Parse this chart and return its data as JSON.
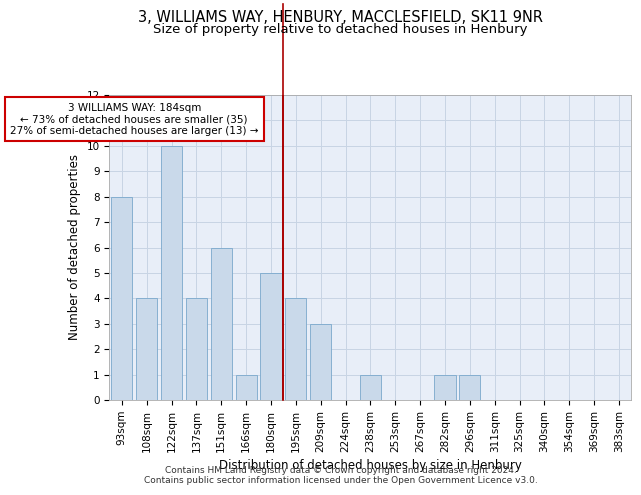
{
  "title1": "3, WILLIAMS WAY, HENBURY, MACCLESFIELD, SK11 9NR",
  "title2": "Size of property relative to detached houses in Henbury",
  "xlabel": "Distribution of detached houses by size in Henbury",
  "ylabel": "Number of detached properties",
  "categories": [
    "93sqm",
    "108sqm",
    "122sqm",
    "137sqm",
    "151sqm",
    "166sqm",
    "180sqm",
    "195sqm",
    "209sqm",
    "224sqm",
    "238sqm",
    "253sqm",
    "267sqm",
    "282sqm",
    "296sqm",
    "311sqm",
    "325sqm",
    "340sqm",
    "354sqm",
    "369sqm",
    "383sqm"
  ],
  "values": [
    8,
    4,
    10,
    4,
    6,
    1,
    5,
    4,
    3,
    0,
    1,
    0,
    0,
    1,
    1,
    0,
    0,
    0,
    0,
    0,
    0
  ],
  "bar_color": "#c9d9ea",
  "bar_edge_color": "#7aa8cc",
  "vline_x": 6.5,
  "vline_color": "#aa0000",
  "annotation_box_text": "3 WILLIAMS WAY: 184sqm\n← 73% of detached houses are smaller (35)\n27% of semi-detached houses are larger (13) →",
  "annotation_box_color": "#cc0000",
  "annotation_box_fill": "#ffffff",
  "ylim": [
    0,
    12
  ],
  "yticks": [
    0,
    1,
    2,
    3,
    4,
    5,
    6,
    7,
    8,
    9,
    10,
    11,
    12
  ],
  "grid_color": "#c8d4e4",
  "background_color": "#e8eef8",
  "footer_text": "Contains HM Land Registry data © Crown copyright and database right 2024.\nContains public sector information licensed under the Open Government Licence v3.0.",
  "title1_fontsize": 10.5,
  "title2_fontsize": 9.5,
  "xlabel_fontsize": 8.5,
  "ylabel_fontsize": 8.5,
  "tick_fontsize": 7.5,
  "annotation_fontsize": 7.5,
  "footer_fontsize": 6.5
}
